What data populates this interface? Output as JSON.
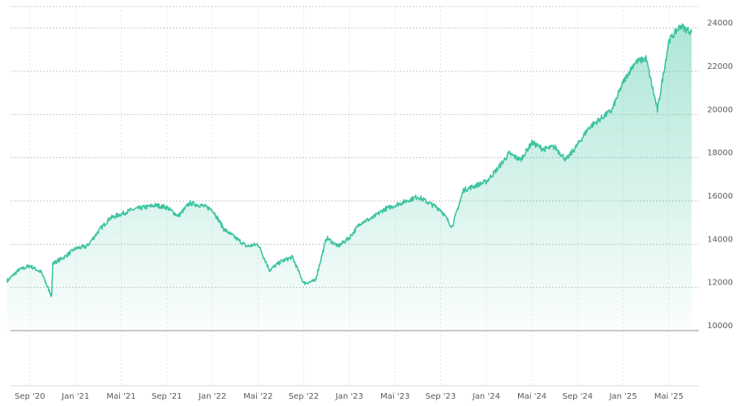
{
  "chart_data": {
    "type": "area",
    "title": "",
    "xlabel": "",
    "ylabel": "",
    "ylim": [
      10000,
      25000
    ],
    "y_ticks": [
      10000,
      12000,
      14000,
      16000,
      18000,
      20000,
      22000,
      24000
    ],
    "y_tick_labels": [
      "10000",
      "12000",
      "14000",
      "16000",
      "18000",
      "20000",
      "22000",
      "24000"
    ],
    "x_ticks": [
      "2020-09",
      "2021-01",
      "2021-05",
      "2021-09",
      "2022-01",
      "2022-05",
      "2022-09",
      "2023-01",
      "2023-05",
      "2023-09",
      "2024-01",
      "2024-05",
      "2024-09",
      "2025-01",
      "2025-05"
    ],
    "x_tick_labels": [
      "Sep '20",
      "Jan '21",
      "Mai '21",
      "Sep '21",
      "Jan '22",
      "Mai '22",
      "Sep '22",
      "Jan '23",
      "Mai '23",
      "Sep '23",
      "Jan '24",
      "Mai '24",
      "Sep '24",
      "Jan '25",
      "Mai '25"
    ],
    "grid": true,
    "line_color": "#3cc4a0",
    "series": [
      {
        "x": [
          "2020-07",
          "2020-08",
          "2020-09",
          "2020-10",
          "2020-10-28",
          "2020-11",
          "2020-12",
          "2021-01",
          "2021-02",
          "2021-03",
          "2021-04",
          "2021-05",
          "2021-06",
          "2021-07",
          "2021-08",
          "2021-09",
          "2021-10",
          "2021-11",
          "2021-12",
          "2022-01",
          "2022-02",
          "2022-03",
          "2022-04",
          "2022-05",
          "2022-06",
          "2022-07",
          "2022-08",
          "2022-09",
          "2022-10",
          "2022-11",
          "2022-12",
          "2023-01",
          "2023-02",
          "2023-03",
          "2023-04",
          "2023-05",
          "2023-06",
          "2023-07",
          "2023-08",
          "2023-09",
          "2023-10",
          "2023-11",
          "2023-12",
          "2024-01",
          "2024-02",
          "2024-03",
          "2024-04",
          "2024-05",
          "2024-06",
          "2024-07",
          "2024-08",
          "2024-09",
          "2024-10",
          "2024-11",
          "2024-12",
          "2025-01",
          "2025-02",
          "2025-03",
          "2025-04",
          "2025-05",
          "2025-06",
          "2025-07"
        ],
        "values": [
          12300,
          12800,
          13000,
          12700,
          11600,
          13100,
          13400,
          13800,
          13900,
          14600,
          15200,
          15400,
          15600,
          15700,
          15800,
          15700,
          15300,
          15900,
          15800,
          15600,
          14700,
          14300,
          13900,
          14000,
          12800,
          13200,
          13400,
          12200,
          12300,
          14300,
          13900,
          14300,
          15000,
          15200,
          15600,
          15800,
          16000,
          16200,
          15900,
          15600,
          14800,
          16500,
          16700,
          16900,
          17500,
          18200,
          17900,
          18700,
          18400,
          18500,
          17900,
          18600,
          19400,
          19800,
          20200,
          21500,
          22400,
          22600,
          20200,
          23400,
          24100,
          23800
        ]
      }
    ]
  }
}
